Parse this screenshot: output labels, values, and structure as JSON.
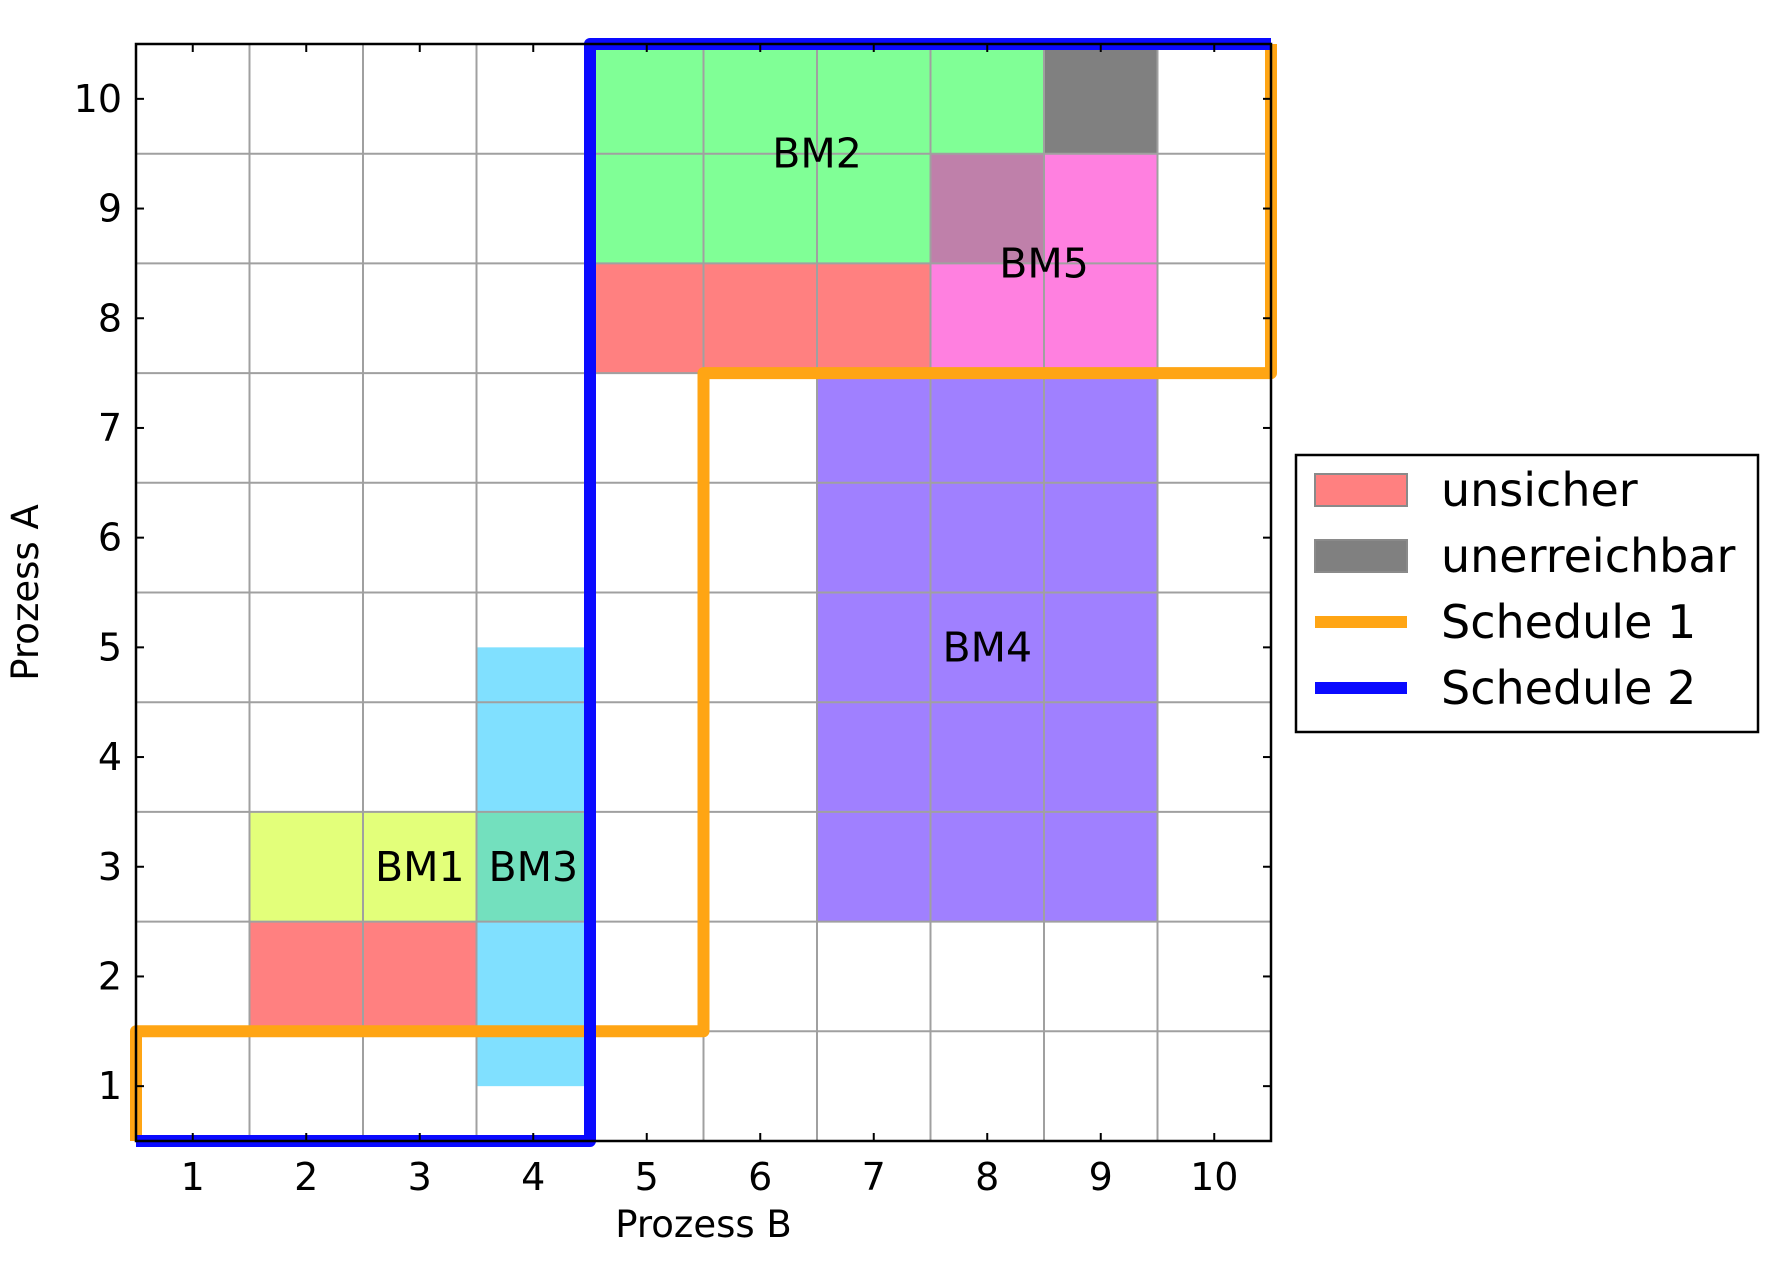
{
  "chart_data": {
    "type": "heatmap",
    "title": "",
    "xlabel": "Prozess B",
    "ylabel": "Prozess A",
    "xlim": [
      0.5,
      10.5
    ],
    "ylim": [
      0.5,
      10.5
    ],
    "xticks": [
      "1",
      "2",
      "3",
      "4",
      "5",
      "6",
      "7",
      "8",
      "9",
      "10"
    ],
    "yticks": [
      "1",
      "2",
      "3",
      "4",
      "5",
      "6",
      "7",
      "8",
      "9",
      "10"
    ],
    "grid": true,
    "legend_position": "right",
    "colors": {
      "unsicher": "#ff8080",
      "unerreichbar": "#808080",
      "BM1": "#e3ff7a",
      "BM2": "#80ff96",
      "BM3": "#80e0ff",
      "BM3_overlap": "#73e0be",
      "BM4": "#a080ff",
      "BM5": "#ff80e0",
      "BM5_overlap": "#bf80aa",
      "schedule1": "#ffa514",
      "schedule2": "#0a0aff"
    },
    "regions": [
      {
        "label": "BM1",
        "x": [
          2,
          3
        ],
        "y": [
          3,
          3
        ],
        "color": "BM1"
      },
      {
        "label": "BM3",
        "x": [
          4,
          4
        ],
        "y": [
          1.5,
          4.5
        ],
        "color": "BM3"
      },
      {
        "label": "",
        "x": [
          4,
          4
        ],
        "y": [
          3,
          3
        ],
        "color": "BM3_overlap"
      },
      {
        "label": "BM4",
        "x": [
          7,
          9
        ],
        "y": [
          3,
          7
        ],
        "color": "BM4"
      },
      {
        "label": "BM2",
        "x": [
          5,
          8
        ],
        "y": [
          9,
          10
        ],
        "color": "BM2"
      },
      {
        "label": "BM5",
        "x": [
          8,
          9
        ],
        "y": [
          8,
          9
        ],
        "color": "BM5"
      },
      {
        "label": "",
        "x": [
          8,
          8
        ],
        "y": [
          9,
          9
        ],
        "color": "BM5_overlap"
      },
      {
        "label": "unsicher",
        "x": [
          2,
          3
        ],
        "y": [
          2,
          2
        ],
        "color": "unsicher"
      },
      {
        "label": "unsicher",
        "x": [
          5,
          7
        ],
        "y": [
          8,
          8
        ],
        "color": "unsicher"
      },
      {
        "label": "unerreichbar",
        "x": [
          9,
          9
        ],
        "y": [
          10,
          10
        ],
        "color": "unerreichbar"
      }
    ],
    "region_labels": [
      {
        "text": "BM1",
        "x": 3,
        "y": 3
      },
      {
        "text": "BM3",
        "x": 4,
        "y": 3
      },
      {
        "text": "BM2",
        "x": 6.5,
        "y": 9.5
      },
      {
        "text": "BM5",
        "x": 8.5,
        "y": 8.5
      },
      {
        "text": "BM4",
        "x": 8,
        "y": 5
      }
    ],
    "series": [
      {
        "name": "Schedule 1",
        "color": "schedule1",
        "points": [
          [
            0.5,
            0.5
          ],
          [
            0.5,
            1.5
          ],
          [
            5.5,
            1.5
          ],
          [
            5.5,
            7.5
          ],
          [
            10.5,
            7.5
          ],
          [
            10.5,
            10.5
          ]
        ]
      },
      {
        "name": "Schedule 2",
        "color": "schedule2",
        "points": [
          [
            0.5,
            0.5
          ],
          [
            4.5,
            0.5
          ],
          [
            4.5,
            10.5
          ],
          [
            10.5,
            10.5
          ]
        ]
      }
    ],
    "legend": [
      {
        "label": "unsicher",
        "kind": "patch",
        "color": "unsicher"
      },
      {
        "label": "unerreichbar",
        "kind": "patch",
        "color": "unerreichbar"
      },
      {
        "label": "Schedule 1",
        "kind": "line",
        "color": "schedule1"
      },
      {
        "label": "Schedule 2",
        "kind": "line",
        "color": "schedule2"
      }
    ]
  }
}
